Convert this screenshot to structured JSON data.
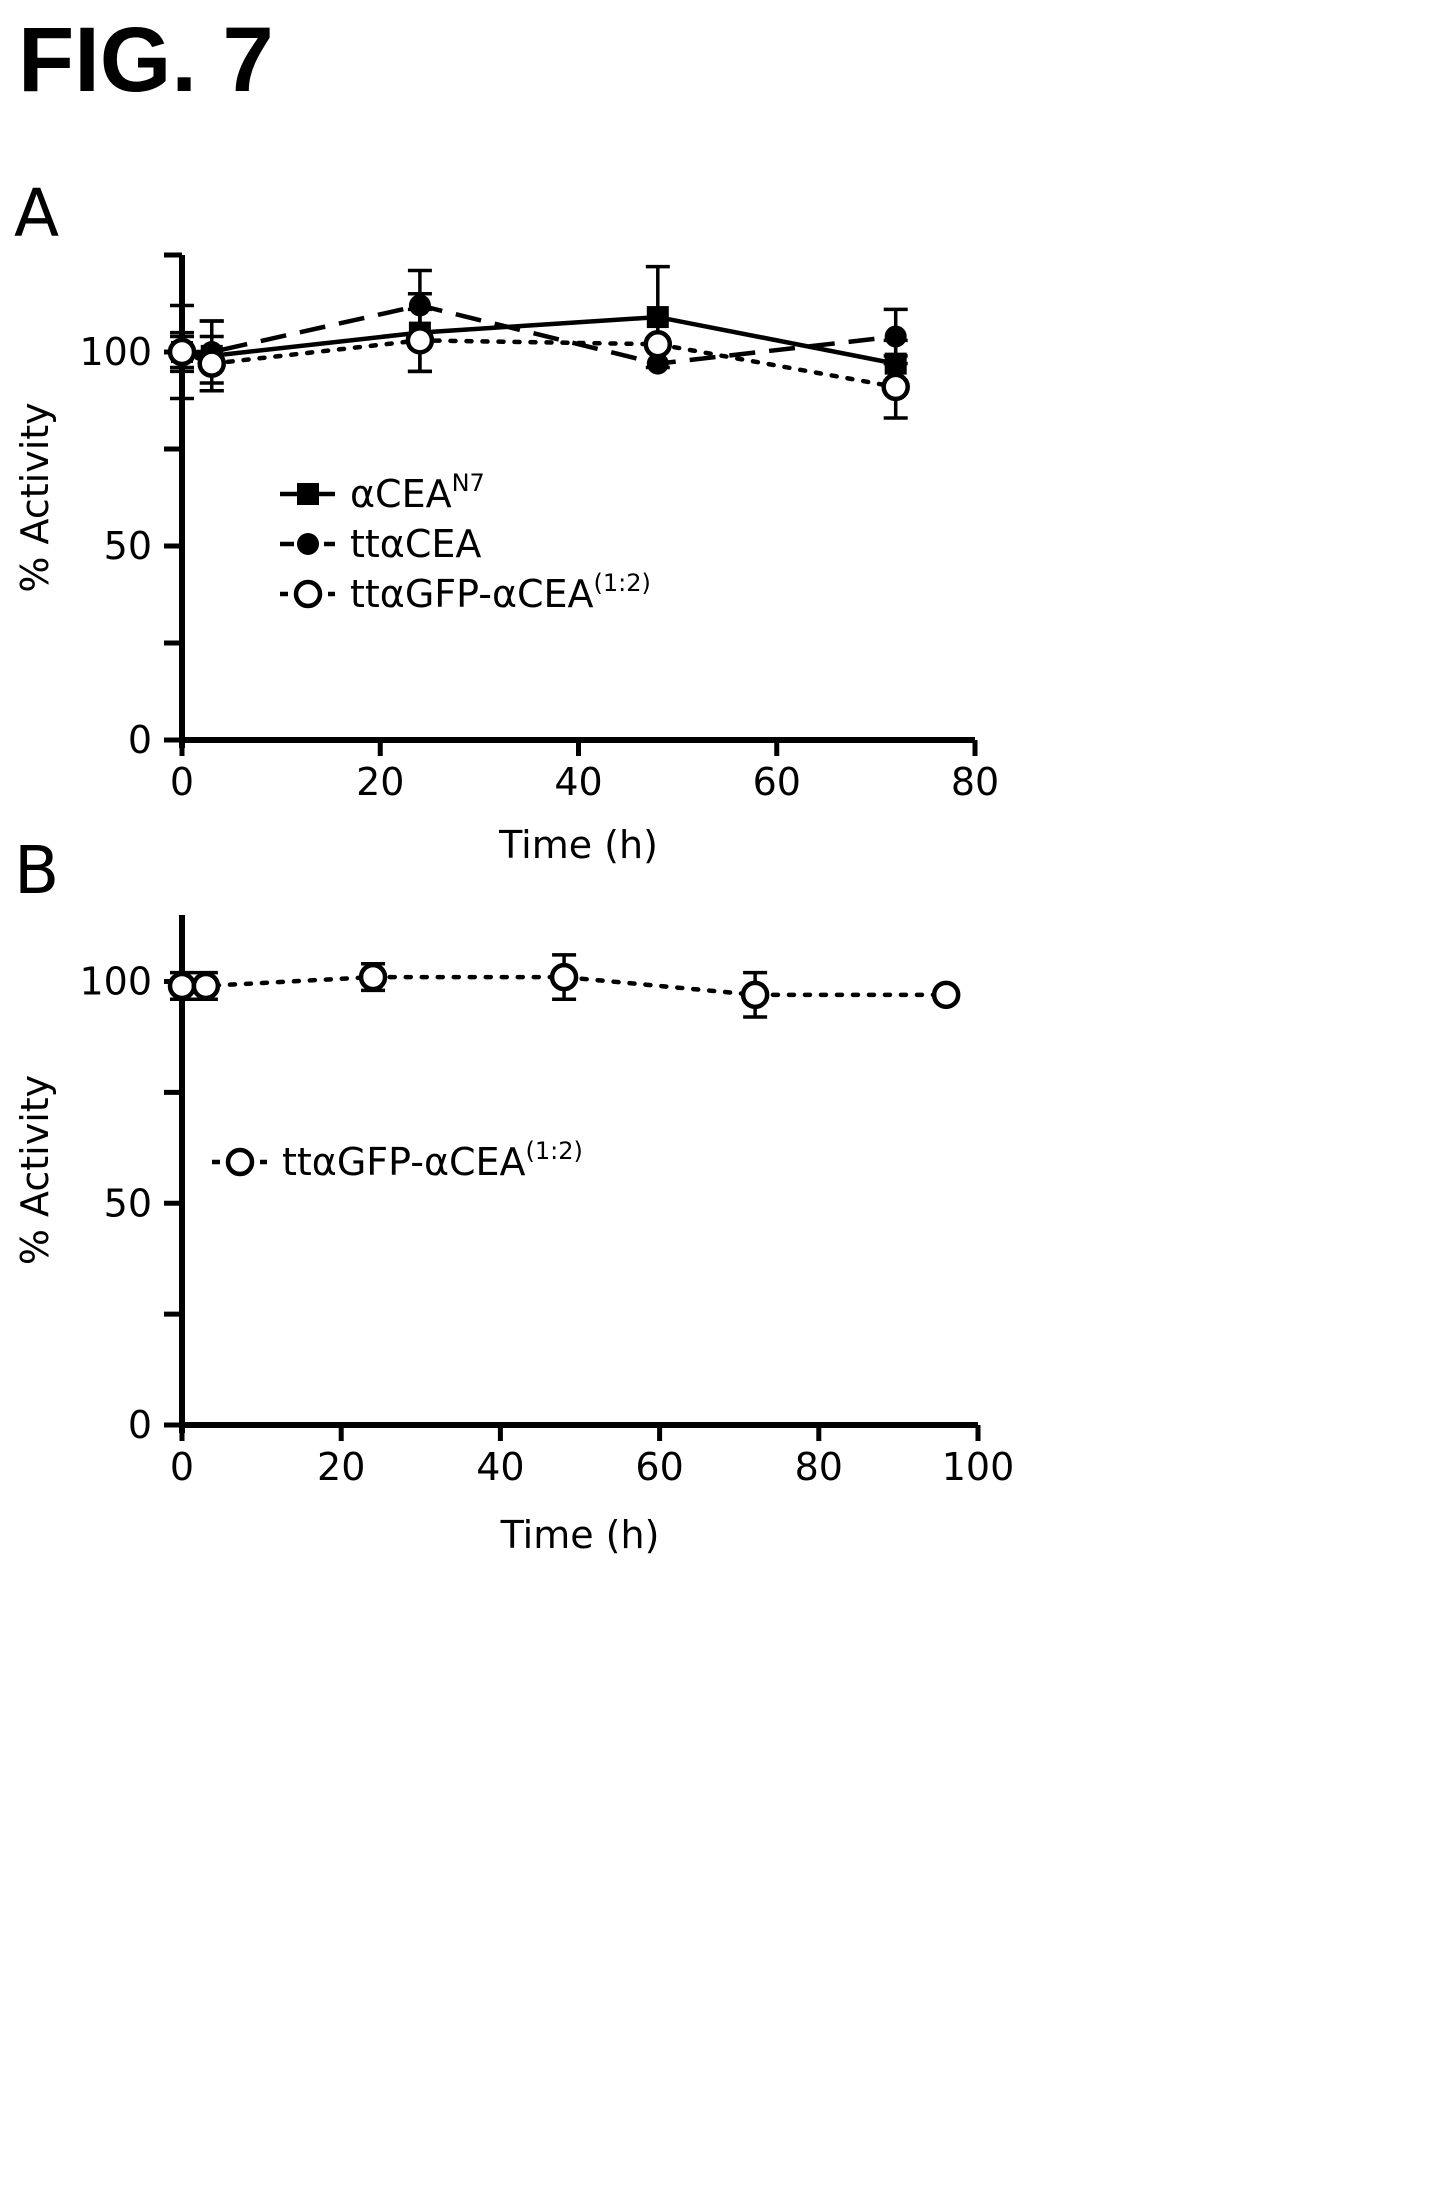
{
  "figure_title": "FIG. 7",
  "chart_data": [
    {
      "panel": "A",
      "type": "line",
      "xlabel": "Time (h)",
      "ylabel": "% Activity",
      "xlim": [
        0,
        80
      ],
      "ylim": [
        0,
        125
      ],
      "xticks": [
        "0",
        "20",
        "40",
        "60",
        "80"
      ],
      "yticks": [
        "0",
        "50",
        "100"
      ],
      "grid": false,
      "legend_position": "center-left",
      "series": [
        {
          "name": "αCEA",
          "superscript": "N7",
          "style": "solid",
          "marker": "square",
          "x": [
            0,
            3,
            24,
            48,
            72
          ],
          "y": [
            100,
            99,
            105,
            109,
            97
          ],
          "err": [
            12,
            9,
            10,
            13,
            6
          ]
        },
        {
          "name": "ttαCEA",
          "superscript": "",
          "style": "dashed",
          "marker": "filled-circle",
          "x": [
            0,
            3,
            24,
            48,
            72
          ],
          "y": [
            100,
            100,
            112,
            97,
            104
          ],
          "err": [
            5,
            8,
            9,
            0,
            7
          ]
        },
        {
          "name": "ttαGFP-αCEA",
          "superscript": "(1:2)",
          "style": "dotted",
          "marker": "open-circle",
          "x": [
            0,
            3,
            24,
            48,
            72
          ],
          "y": [
            100,
            97,
            103,
            102,
            91
          ],
          "err": [
            4,
            7,
            8,
            0,
            8
          ]
        }
      ]
    },
    {
      "panel": "B",
      "type": "line",
      "xlabel": "Time (h)",
      "ylabel": "% Activity",
      "xlim": [
        0,
        100
      ],
      "ylim": [
        0,
        115
      ],
      "xticks": [
        "0",
        "20",
        "40",
        "60",
        "80",
        "100"
      ],
      "yticks": [
        "0",
        "50",
        "100"
      ],
      "grid": false,
      "legend_position": "center-left",
      "series": [
        {
          "name": "ttαGFP-αCEA",
          "superscript": "(1:2)",
          "style": "dotted",
          "marker": "open-circle",
          "x": [
            0,
            3,
            24,
            48,
            72,
            96
          ],
          "y": [
            99,
            99,
            101,
            101,
            97,
            97
          ],
          "err": [
            3,
            3,
            3,
            5,
            5,
            0
          ]
        }
      ]
    }
  ]
}
